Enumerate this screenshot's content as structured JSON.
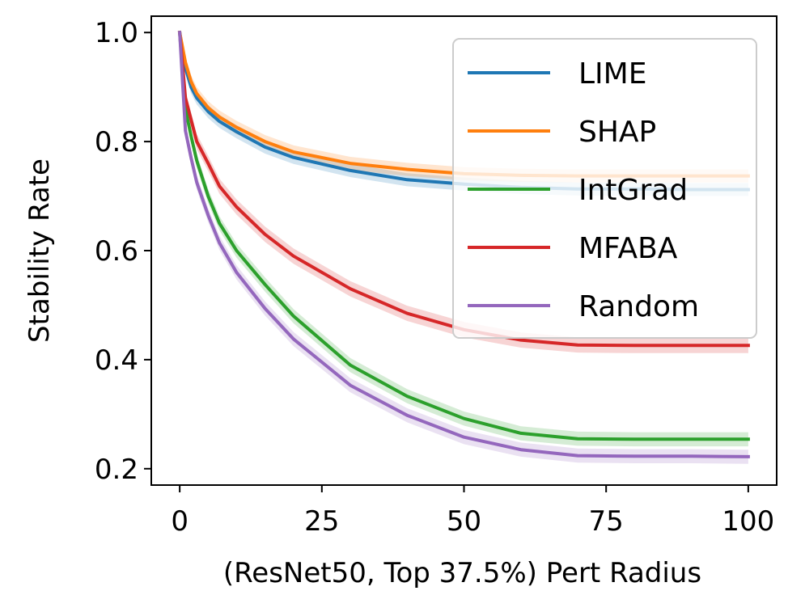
{
  "chart_data": {
    "type": "line",
    "xlabel": "(ResNet50, Top 37.5%) Pert Radius",
    "ylabel": "Stability Rate",
    "xlim": [
      -5,
      105
    ],
    "ylim": [
      0.17,
      1.03
    ],
    "xticks": [
      0,
      25,
      50,
      75,
      100
    ],
    "yticks": [
      0.2,
      0.4,
      0.6,
      0.8,
      1.0
    ],
    "xtick_labels": [
      "0",
      "25",
      "50",
      "75",
      "100"
    ],
    "ytick_labels": [
      "0.2",
      "0.4",
      "0.6",
      "0.8",
      "1.0"
    ],
    "grid": false,
    "legend_placement": "top-right",
    "x": [
      0,
      1,
      2,
      3,
      5,
      7,
      10,
      15,
      20,
      30,
      40,
      50,
      60,
      70,
      80,
      90,
      100
    ],
    "series": [
      {
        "name": "LIME",
        "color": "#1f77b4",
        "values": [
          1.0,
          0.935,
          0.9,
          0.88,
          0.855,
          0.837,
          0.818,
          0.79,
          0.771,
          0.747,
          0.73,
          0.722,
          0.716,
          0.713,
          0.713,
          0.712,
          0.712
        ],
        "band": 0.012
      },
      {
        "name": "SHAP",
        "color": "#ff7f0e",
        "values": [
          1.0,
          0.945,
          0.91,
          0.888,
          0.862,
          0.845,
          0.826,
          0.8,
          0.781,
          0.76,
          0.749,
          0.741,
          0.738,
          0.737,
          0.737,
          0.737,
          0.737
        ],
        "band": 0.012
      },
      {
        "name": "IntGrad",
        "color": "#2ca02c",
        "values": [
          1.0,
          0.86,
          0.81,
          0.765,
          0.7,
          0.65,
          0.6,
          0.538,
          0.48,
          0.39,
          0.333,
          0.292,
          0.265,
          0.255,
          0.254,
          0.254,
          0.254
        ],
        "band": 0.013
      },
      {
        "name": "MFABA",
        "color": "#d62728",
        "values": [
          1.0,
          0.88,
          0.84,
          0.8,
          0.76,
          0.718,
          0.68,
          0.63,
          0.59,
          0.53,
          0.485,
          0.455,
          0.436,
          0.427,
          0.426,
          0.426,
          0.426
        ],
        "band": 0.014
      },
      {
        "name": "Random",
        "color": "#9467bd",
        "values": [
          1.0,
          0.82,
          0.77,
          0.725,
          0.665,
          0.614,
          0.56,
          0.494,
          0.438,
          0.353,
          0.298,
          0.258,
          0.235,
          0.224,
          0.223,
          0.223,
          0.222
        ],
        "band": 0.013
      }
    ]
  }
}
